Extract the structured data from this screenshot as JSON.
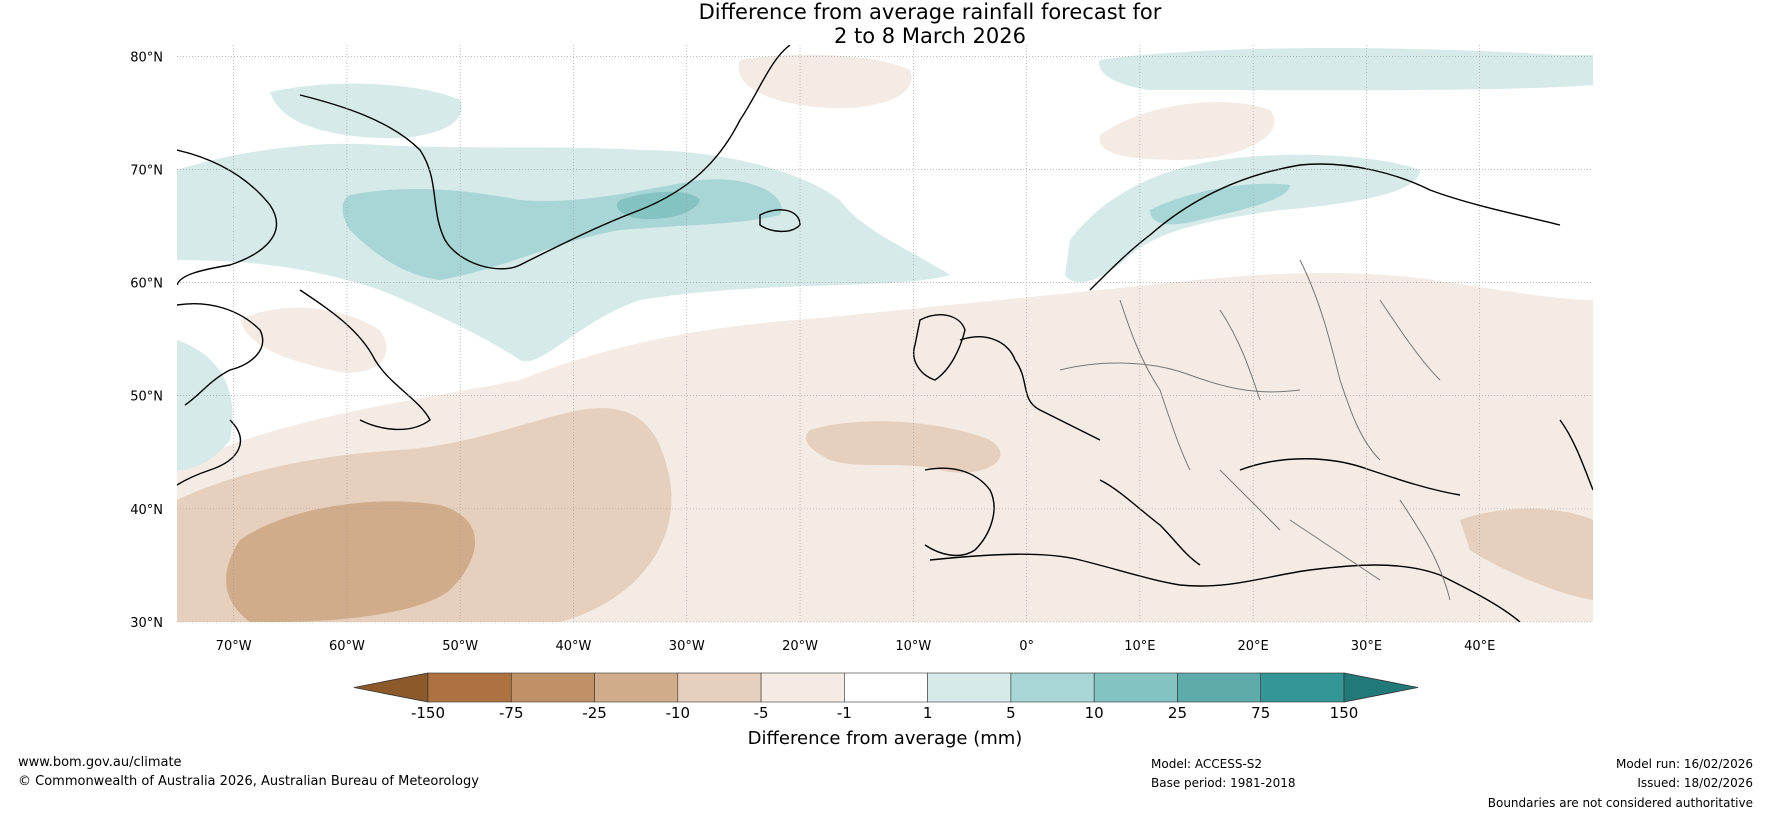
{
  "title": {
    "line1": "Difference from average rainfall forecast for",
    "line2": "2 to 8 March 2026"
  },
  "map": {
    "lat_labels": [
      "80°N",
      "70°N",
      "60°N",
      "50°N",
      "40°N",
      "30°N"
    ],
    "lon_labels": [
      "70°W",
      "60°W",
      "50°W",
      "40°W",
      "30°W",
      "20°W",
      "10°W",
      "0°",
      "10°E",
      "20°E",
      "30°E",
      "40°E"
    ]
  },
  "colorbar": {
    "title": "Difference from average (mm)",
    "tick_labels": [
      "-150",
      "-75",
      "-25",
      "-10",
      "-5",
      "-1",
      "1",
      "5",
      "10",
      "25",
      "75",
      "150"
    ],
    "colors": [
      "#8c5a2a",
      "#ad7240",
      "#c09066",
      "#d1ac8a",
      "#e6d0bd",
      "#f3ebe4",
      "#ffffff",
      "#d5eae9",
      "#a8d5d5",
      "#85c3c3",
      "#5faaab",
      "#349696",
      "#21797a"
    ]
  },
  "footer": {
    "website": "www.bom.gov.au/climate",
    "copyright": "© Commonwealth of Australia 2026, Australian Bureau of Meteorology",
    "model": "Model: ACCESS-S2",
    "base_period": "Base period: 1981-2018",
    "model_run": "Model run: 16/02/2026",
    "issued": "Issued: 18/02/2026",
    "disclaimer": "Boundaries are not considered authoritative"
  }
}
